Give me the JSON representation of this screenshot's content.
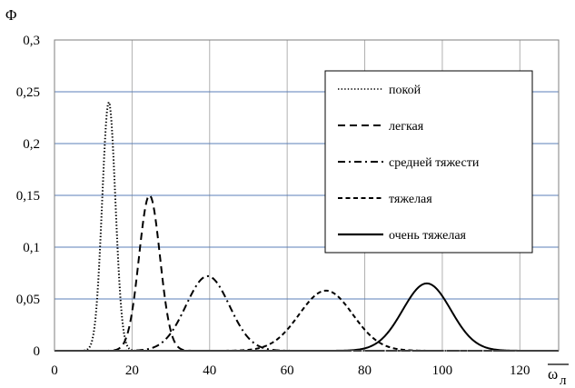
{
  "chart_data": {
    "type": "line",
    "ylabel": "Φ",
    "xlabel": "ω",
    "xlabel_subscript": "л",
    "xlim": [
      0,
      130
    ],
    "ylim": [
      0,
      0.3
    ],
    "xticks": [
      "0",
      "20",
      "40",
      "60",
      "80",
      "100",
      "120"
    ],
    "yticks": [
      "0",
      "0,05",
      "0,1",
      "0,15",
      "0,2",
      "0,25",
      "0,3"
    ],
    "grid": true,
    "legend_position": "top-right",
    "series": [
      {
        "name": "покой",
        "style": "dotted",
        "peak_x": 14,
        "peak_y": 0.24,
        "sigma": 1.7,
        "x": [
          8,
          10,
          12,
          13,
          14,
          15,
          16,
          18,
          20
        ],
        "y": [
          0,
          0.015,
          0.12,
          0.2,
          0.24,
          0.2,
          0.12,
          0.015,
          0
        ]
      },
      {
        "name": "легкая",
        "style": "dashed",
        "peak_x": 24.5,
        "peak_y": 0.15,
        "sigma": 2.7,
        "x": [
          15,
          18,
          20,
          22,
          24.5,
          27,
          29,
          31,
          34
        ],
        "y": [
          0,
          0.008,
          0.038,
          0.096,
          0.15,
          0.096,
          0.038,
          0.008,
          0
        ]
      },
      {
        "name": "средней тяжести",
        "style": "dashdot",
        "peak_x": 39.5,
        "peak_y": 0.072,
        "sigma": 5.6,
        "x": [
          22,
          28,
          32,
          36,
          39.5,
          43,
          47,
          51,
          57
        ],
        "y": [
          0,
          0.009,
          0.029,
          0.059,
          0.072,
          0.059,
          0.029,
          0.009,
          0
        ]
      },
      {
        "name": "тяжелая",
        "style": "shortdash",
        "peak_x": 70,
        "peak_y": 0.058,
        "sigma": 6.9,
        "x": [
          48,
          56,
          62,
          66,
          70,
          74,
          78,
          84,
          92
        ],
        "y": [
          0,
          0.008,
          0.027,
          0.049,
          0.058,
          0.049,
          0.027,
          0.008,
          0
        ]
      },
      {
        "name": "очень тяжелая",
        "style": "solid",
        "peak_x": 96,
        "peak_y": 0.065,
        "sigma": 6.2,
        "x": [
          76,
          84,
          90,
          93,
          96,
          99,
          102,
          108,
          116
        ],
        "y": [
          0,
          0.01,
          0.041,
          0.058,
          0.065,
          0.058,
          0.041,
          0.01,
          0
        ]
      }
    ]
  }
}
